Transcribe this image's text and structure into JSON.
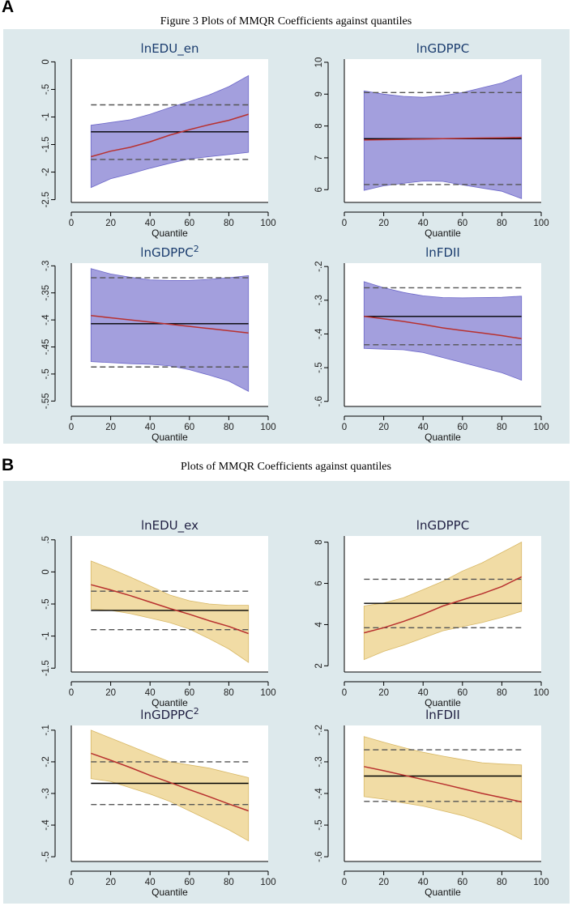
{
  "panel_a": {
    "letter": "A",
    "title": "Figure 3 Plots of MMQR Coefficients against quantiles",
    "band_color": "#a39fdd",
    "band_stroke": "#6c67c9"
  },
  "panel_b": {
    "letter": "B",
    "title": "Plots of MMQR Coefficients against quantiles",
    "band_color": "#f1dca5",
    "band_stroke": "#d8b866"
  },
  "chart_data": [
    {
      "id": "a1",
      "panel": "A",
      "type": "line",
      "title": "lnEDU_en",
      "title_sup": "",
      "xlabel": "Quantile",
      "xticks": [
        0,
        20,
        40,
        60,
        80,
        100
      ],
      "xlim": [
        0,
        100
      ],
      "yticks": [
        0,
        -0.5,
        -1,
        -1.5,
        -2,
        -2.5
      ],
      "ytick_labels": [
        "0",
        "-.5",
        "-1",
        "-1.5",
        "-2",
        "-2.5"
      ],
      "ylim": [
        -2.55,
        0.05
      ],
      "x": [
        10,
        20,
        30,
        40,
        50,
        60,
        70,
        80,
        90
      ],
      "coef": [
        -1.72,
        -1.62,
        -1.55,
        -1.45,
        -1.33,
        -1.23,
        -1.14,
        -1.06,
        -0.95
      ],
      "ci_upper": [
        -1.15,
        -1.1,
        -1.05,
        -0.95,
        -0.83,
        -0.72,
        -0.6,
        -0.45,
        -0.25
      ],
      "ci_lower": [
        -2.28,
        -2.12,
        -2.03,
        -1.93,
        -1.84,
        -1.76,
        -1.72,
        -1.68,
        -1.64
      ],
      "ols": -1.27,
      "ols_ci_upper": -0.78,
      "ols_ci_lower": -1.77,
      "band_color": "#a39fdd",
      "band_stroke": "#6c67c9"
    },
    {
      "id": "a2",
      "panel": "A",
      "type": "line",
      "title": "lnGDPPC",
      "title_sup": "",
      "xlabel": "Quantile",
      "xticks": [
        0,
        20,
        40,
        60,
        80,
        100
      ],
      "xlim": [
        0,
        100
      ],
      "yticks": [
        10,
        9,
        8,
        7,
        6
      ],
      "ytick_labels": [
        "10",
        "9",
        "8",
        "7",
        "6"
      ],
      "ylim": [
        5.6,
        10.1
      ],
      "x": [
        10,
        20,
        30,
        40,
        50,
        60,
        70,
        80,
        90
      ],
      "coef": [
        7.56,
        7.57,
        7.58,
        7.59,
        7.6,
        7.61,
        7.62,
        7.63,
        7.64
      ],
      "ci_upper": [
        9.1,
        9.0,
        8.93,
        8.9,
        8.95,
        9.05,
        9.2,
        9.35,
        9.6
      ],
      "ci_lower": [
        5.98,
        6.12,
        6.2,
        6.27,
        6.26,
        6.15,
        6.05,
        5.95,
        5.72
      ],
      "ols": 7.6,
      "ols_ci_upper": 9.05,
      "ols_ci_lower": 6.16,
      "band_color": "#a39fdd",
      "band_stroke": "#6c67c9"
    },
    {
      "id": "a3",
      "panel": "A",
      "type": "line",
      "title": "lnGDPPC",
      "title_sup": "2",
      "xlabel": "Quantile",
      "xticks": [
        0,
        20,
        40,
        60,
        80,
        100
      ],
      "xlim": [
        0,
        100
      ],
      "yticks": [
        -0.3,
        -0.35,
        -0.4,
        -0.45,
        -0.5,
        -0.55
      ],
      "ytick_labels": [
        "-.3",
        "-.35",
        "-.4",
        "-.45",
        "-.5",
        "-.55"
      ],
      "ylim": [
        -0.56,
        -0.295
      ],
      "x": [
        10,
        20,
        30,
        40,
        50,
        60,
        70,
        80,
        90
      ],
      "coef": [
        -0.392,
        -0.396,
        -0.4,
        -0.404,
        -0.408,
        -0.412,
        -0.416,
        -0.42,
        -0.424
      ],
      "ci_upper": [
        -0.305,
        -0.315,
        -0.321,
        -0.326,
        -0.327,
        -0.327,
        -0.325,
        -0.322,
        -0.318
      ],
      "ci_lower": [
        -0.477,
        -0.479,
        -0.481,
        -0.482,
        -0.485,
        -0.492,
        -0.502,
        -0.513,
        -0.532
      ],
      "ols": -0.407,
      "ols_ci_upper": -0.322,
      "ols_ci_lower": -0.487,
      "band_color": "#a39fdd",
      "band_stroke": "#6c67c9"
    },
    {
      "id": "a4",
      "panel": "A",
      "type": "line",
      "title": "lnFDII",
      "title_sup": "",
      "xlabel": "Quantile",
      "xticks": [
        0,
        20,
        40,
        60,
        80,
        100
      ],
      "xlim": [
        0,
        100
      ],
      "yticks": [
        -0.2,
        -0.3,
        -0.4,
        -0.5,
        -0.6
      ],
      "ytick_labels": [
        "-.2",
        "-.3",
        "-.4",
        "-.5",
        "-.6"
      ],
      "ylim": [
        -0.615,
        -0.19
      ],
      "x": [
        10,
        20,
        30,
        40,
        50,
        60,
        70,
        80,
        90
      ],
      "coef": [
        -0.348,
        -0.355,
        -0.363,
        -0.372,
        -0.382,
        -0.39,
        -0.397,
        -0.405,
        -0.414
      ],
      "ci_upper": [
        -0.245,
        -0.263,
        -0.277,
        -0.287,
        -0.292,
        -0.293,
        -0.292,
        -0.291,
        -0.288
      ],
      "ci_lower": [
        -0.443,
        -0.445,
        -0.447,
        -0.455,
        -0.47,
        -0.485,
        -0.5,
        -0.515,
        -0.537
      ],
      "ols": -0.348,
      "ols_ci_upper": -0.263,
      "ols_ci_lower": -0.432,
      "band_color": "#a39fdd",
      "band_stroke": "#6c67c9"
    },
    {
      "id": "b1",
      "panel": "B",
      "type": "line",
      "title": "lnEDU_ex",
      "title_sup": "",
      "xlabel": "Quantile",
      "xticks": [
        0,
        20,
        40,
        60,
        80,
        100
      ],
      "xlim": [
        0,
        100
      ],
      "yticks": [
        0.5,
        0,
        -0.5,
        -1,
        -1.5
      ],
      "ytick_labels": [
        ".5",
        "0",
        "-.5",
        "-1",
        "-1.5"
      ],
      "ylim": [
        -1.56,
        0.56
      ],
      "x": [
        10,
        20,
        30,
        40,
        50,
        60,
        70,
        80,
        90
      ],
      "coef": [
        -0.2,
        -0.28,
        -0.37,
        -0.47,
        -0.57,
        -0.66,
        -0.76,
        -0.85,
        -0.96
      ],
      "ci_upper": [
        0.17,
        0.05,
        -0.08,
        -0.22,
        -0.36,
        -0.45,
        -0.5,
        -0.52,
        -0.52
      ],
      "ci_lower": [
        -0.58,
        -0.6,
        -0.65,
        -0.72,
        -0.79,
        -0.89,
        -1.04,
        -1.2,
        -1.41
      ],
      "ols": -0.6,
      "ols_ci_upper": -0.3,
      "ols_ci_lower": -0.9,
      "band_color": "#f1dca5",
      "band_stroke": "#d8b866"
    },
    {
      "id": "b2",
      "panel": "B",
      "type": "line",
      "title": "lnGDPPC",
      "title_sup": "",
      "xlabel": "Quantile",
      "xticks": [
        0,
        20,
        40,
        60,
        80,
        100
      ],
      "xlim": [
        0,
        100
      ],
      "yticks": [
        8,
        6,
        4,
        2
      ],
      "ytick_labels": [
        "8",
        "6",
        "4",
        "2"
      ],
      "ylim": [
        1.7,
        8.3
      ],
      "x": [
        10,
        20,
        30,
        40,
        50,
        60,
        70,
        80,
        90
      ],
      "coef": [
        3.6,
        3.85,
        4.15,
        4.5,
        4.9,
        5.2,
        5.5,
        5.85,
        6.32
      ],
      "ci_upper": [
        4.9,
        5.05,
        5.3,
        5.7,
        6.1,
        6.6,
        7.0,
        7.5,
        8.0
      ],
      "ci_lower": [
        2.3,
        2.7,
        3.0,
        3.35,
        3.7,
        3.9,
        4.1,
        4.35,
        4.65
      ],
      "ols": 5.03,
      "ols_ci_upper": 6.2,
      "ols_ci_lower": 3.85,
      "band_color": "#f1dca5",
      "band_stroke": "#d8b866"
    },
    {
      "id": "b3",
      "panel": "B",
      "type": "line",
      "title": "lnGDPPC",
      "title_sup": "2",
      "xlabel": "Quantile",
      "xticks": [
        0,
        20,
        40,
        60,
        80,
        100
      ],
      "xlim": [
        0,
        100
      ],
      "yticks": [
        -0.1,
        -0.2,
        -0.3,
        -0.4,
        -0.5
      ],
      "ytick_labels": [
        "-.1",
        "-.2",
        "-.3",
        "-.4",
        "-.5"
      ],
      "ylim": [
        -0.515,
        -0.085
      ],
      "x": [
        10,
        20,
        30,
        40,
        50,
        60,
        70,
        80,
        90
      ],
      "coef": [
        -0.173,
        -0.195,
        -0.218,
        -0.243,
        -0.265,
        -0.288,
        -0.31,
        -0.333,
        -0.355
      ],
      "ci_upper": [
        -0.1,
        -0.125,
        -0.15,
        -0.175,
        -0.2,
        -0.21,
        -0.22,
        -0.235,
        -0.25
      ],
      "ci_lower": [
        -0.253,
        -0.262,
        -0.282,
        -0.302,
        -0.325,
        -0.355,
        -0.385,
        -0.415,
        -0.45
      ],
      "ols": -0.268,
      "ols_ci_upper": -0.2,
      "ols_ci_lower": -0.335,
      "band_color": "#f1dca5",
      "band_stroke": "#d8b866"
    },
    {
      "id": "b4",
      "panel": "B",
      "type": "line",
      "title": "lnFDII",
      "title_sup": "",
      "xlabel": "Quantile",
      "xticks": [
        0,
        20,
        40,
        60,
        80,
        100
      ],
      "xlim": [
        0,
        100
      ],
      "yticks": [
        -0.2,
        -0.3,
        -0.4,
        -0.5,
        -0.6
      ],
      "ytick_labels": [
        "-.2",
        "-.3",
        "-.4",
        "-.5",
        "-.6"
      ],
      "ylim": [
        -0.615,
        -0.185
      ],
      "x": [
        10,
        20,
        30,
        40,
        50,
        60,
        70,
        80,
        90
      ],
      "coef": [
        -0.315,
        -0.328,
        -0.342,
        -0.356,
        -0.37,
        -0.385,
        -0.4,
        -0.413,
        -0.427
      ],
      "ci_upper": [
        -0.22,
        -0.238,
        -0.255,
        -0.27,
        -0.282,
        -0.293,
        -0.303,
        -0.307,
        -0.31
      ],
      "ci_lower": [
        -0.41,
        -0.418,
        -0.43,
        -0.44,
        -0.455,
        -0.47,
        -0.49,
        -0.515,
        -0.545
      ],
      "ols": -0.345,
      "ols_ci_upper": -0.262,
      "ols_ci_lower": -0.425,
      "band_color": "#f1dca5",
      "band_stroke": "#d8b866"
    }
  ]
}
